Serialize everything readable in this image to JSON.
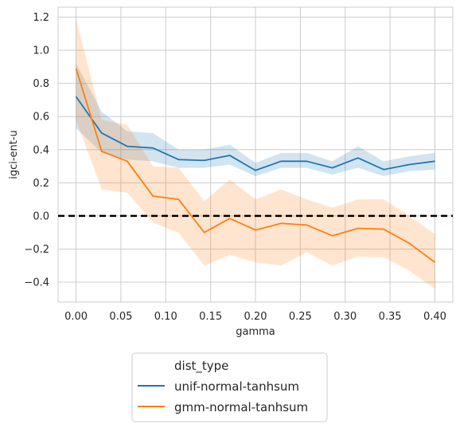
{
  "chart_data": {
    "type": "line",
    "xlabel": "gamma",
    "ylabel": "igci-ent-u",
    "xlim": [
      -0.02,
      0.42
    ],
    "ylim": [
      -0.52,
      1.26
    ],
    "xticks": [
      0.0,
      0.05,
      0.1,
      0.15,
      0.2,
      0.25,
      0.3,
      0.35,
      0.4
    ],
    "xtick_labels": [
      "0.00",
      "0.05",
      "0.10",
      "0.15",
      "0.20",
      "0.25",
      "0.30",
      "0.35",
      "0.40"
    ],
    "yticks": [
      -0.4,
      -0.2,
      0.0,
      0.2,
      0.4,
      0.6,
      0.8,
      1.0,
      1.2
    ],
    "ytick_labels": [
      "−0.4",
      "−0.2",
      "0.0",
      "0.2",
      "0.4",
      "0.6",
      "0.8",
      "1.0",
      "1.2"
    ],
    "grid": true,
    "reference_line": {
      "y": 0.0,
      "style": "dashed",
      "color": "#000000"
    },
    "x": [
      0.0,
      0.0286,
      0.0571,
      0.0857,
      0.1143,
      0.1429,
      0.1714,
      0.2,
      0.2286,
      0.2571,
      0.2857,
      0.3143,
      0.3429,
      0.3714,
      0.4
    ],
    "series": [
      {
        "name": "unif-normal-tanhsum",
        "color": "#1f77b4",
        "values": [
          0.72,
          0.5,
          0.42,
          0.41,
          0.34,
          0.335,
          0.365,
          0.275,
          0.33,
          0.33,
          0.29,
          0.35,
          0.28,
          0.31,
          0.33
        ],
        "lower": [
          0.53,
          0.38,
          0.34,
          0.33,
          0.29,
          0.29,
          0.31,
          0.24,
          0.29,
          0.29,
          0.25,
          0.29,
          0.24,
          0.27,
          0.28
        ],
        "upper": [
          0.92,
          0.63,
          0.51,
          0.5,
          0.4,
          0.4,
          0.43,
          0.32,
          0.38,
          0.38,
          0.33,
          0.42,
          0.33,
          0.36,
          0.38
        ]
      },
      {
        "name": "gmm-normal-tanhsum",
        "color": "#ff7f0e",
        "values": [
          0.89,
          0.39,
          0.33,
          0.12,
          0.1,
          -0.1,
          -0.015,
          -0.085,
          -0.045,
          -0.055,
          -0.12,
          -0.075,
          -0.08,
          -0.165,
          -0.28
        ],
        "lower": [
          0.58,
          0.16,
          0.14,
          -0.04,
          -0.1,
          -0.3,
          -0.235,
          -0.28,
          -0.3,
          -0.22,
          -0.3,
          -0.245,
          -0.25,
          -0.33,
          -0.44
        ],
        "upper": [
          1.19,
          0.58,
          0.55,
          0.3,
          0.29,
          0.09,
          0.22,
          0.1,
          0.16,
          0.1,
          0.05,
          0.1,
          0.1,
          0.0,
          -0.11
        ]
      }
    ],
    "legend": {
      "title": "dist_type",
      "placement": "below"
    }
  }
}
